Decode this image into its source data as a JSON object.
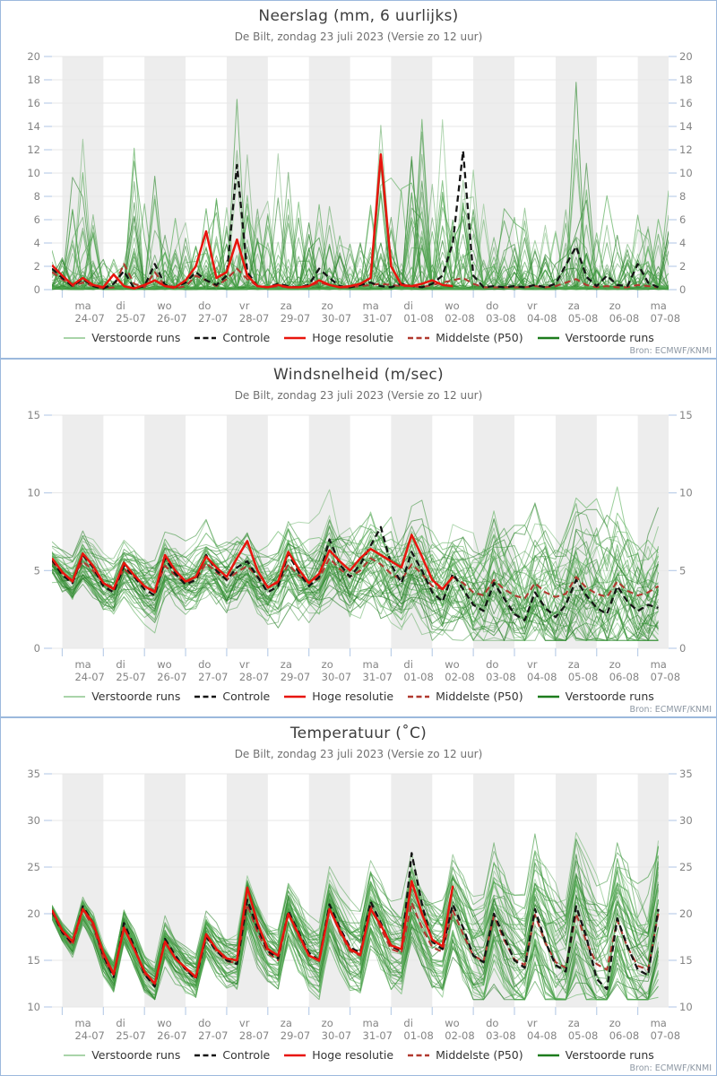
{
  "source_note": "Bron: ECMWF/KNMI",
  "legend": [
    {
      "label": "Verstoorde runs",
      "color": "#a9d4a9",
      "dash": false,
      "width": 2.0
    },
    {
      "label": "Controle",
      "color": "#141414",
      "dash": true,
      "width": 2.6
    },
    {
      "label": "Hoge resolutie",
      "color": "#e8150d",
      "dash": false,
      "width": 2.6
    },
    {
      "label": "Middelste (P50)",
      "color": "#b1392f",
      "dash": true,
      "width": 2.6
    },
    {
      "label": "Verstoorde runs",
      "color": "#1d7c1d",
      "dash": false,
      "width": 2.6
    }
  ],
  "days": [
    {
      "wd": "ma",
      "date": "24-07"
    },
    {
      "wd": "di",
      "date": "25-07"
    },
    {
      "wd": "wo",
      "date": "26-07"
    },
    {
      "wd": "do",
      "date": "27-07"
    },
    {
      "wd": "vr",
      "date": "28-07"
    },
    {
      "wd": "za",
      "date": "29-07"
    },
    {
      "wd": "zo",
      "date": "30-07"
    },
    {
      "wd": "ma",
      "date": "31-07"
    },
    {
      "wd": "di",
      "date": "01-08"
    },
    {
      "wd": "wo",
      "date": "02-08"
    },
    {
      "wd": "do",
      "date": "03-08"
    },
    {
      "wd": "vr",
      "date": "04-08"
    },
    {
      "wd": "za",
      "date": "05-08"
    },
    {
      "wd": "zo",
      "date": "06-08"
    },
    {
      "wd": "ma",
      "date": "07-08"
    }
  ],
  "chart_data": [
    {
      "type": "line",
      "title": "Neerslag (mm, 6 uurlijks)",
      "subtitle": "De Bilt, zondag 23 juli 2023 (Versie zo 12 uur)",
      "ylim": [
        0,
        20
      ],
      "yticks": [
        0,
        2,
        4,
        6,
        8,
        10,
        12,
        14,
        16,
        18,
        20
      ],
      "x_axis": {
        "start": "zo 23-07 18:00",
        "hours_total": 360,
        "day_tick_hours": 24,
        "grid": "day-bands"
      },
      "legend_position": "bottom",
      "series": [
        {
          "name": "p50",
          "legend_label": "Middelste (P50)",
          "color": "#b1392f",
          "dash": true,
          "width": 2.1,
          "t0": 0,
          "dt": 6,
          "v": [
            1.5,
            0.9,
            0.3,
            0.6,
            0.3,
            0.1,
            0.2,
            2.2,
            0.5,
            0.2,
            1.5,
            0.3,
            0.1,
            0.3,
            1.2,
            0.8,
            0.3,
            0.9,
            1.8,
            0.9,
            0.3,
            0.2,
            0.3,
            0.2,
            0.2,
            0.3,
            0.6,
            0.4,
            0.2,
            0.2,
            0.3,
            0.4,
            0.5,
            0.4,
            0.3,
            0.3,
            0.2,
            0.4,
            0.6,
            0.8,
            1.0,
            0.5,
            0.2,
            0.2,
            0.2,
            0.2,
            0.2,
            0.3,
            0.2,
            0.3,
            0.6,
            0.9,
            0.4,
            0.2,
            0.3,
            0.2,
            0.2,
            0.4,
            0.3,
            0.2
          ]
        },
        {
          "name": "controle",
          "legend_label": "Controle",
          "color": "#141414",
          "dash": true,
          "width": 2.3,
          "t0": 0,
          "dt": 6,
          "v": [
            1.8,
            1.0,
            0.3,
            0.9,
            0.3,
            0.1,
            0.5,
            1.6,
            0.1,
            0.3,
            2.2,
            0.4,
            0.2,
            0.6,
            1.5,
            0.8,
            0.4,
            1.2,
            10.7,
            1.5,
            0.3,
            0.2,
            0.5,
            0.3,
            0.2,
            0.4,
            1.8,
            1.0,
            0.3,
            0.2,
            0.4,
            0.6,
            0.3,
            0.2,
            0.5,
            0.3,
            0.2,
            0.5,
            1.2,
            4.0,
            11.9,
            1.2,
            0.2,
            0.3,
            0.2,
            0.3,
            0.2,
            0.4,
            0.2,
            0.5,
            2.1,
            3.7,
            1.1,
            0.3,
            1.2,
            0.4,
            0.3,
            2.2,
            0.6,
            0.2
          ]
        },
        {
          "name": "hires",
          "legend_label": "Hoge resolutie",
          "color": "#e8150d",
          "dash": false,
          "width": 2.5,
          "t0": 0,
          "dt": 6,
          "v": [
            2.1,
            1.2,
            0.4,
            1.0,
            0.4,
            0.2,
            1.3,
            0.3,
            0.1,
            0.4,
            0.8,
            0.3,
            0.2,
            0.8,
            2.0,
            5.0,
            1.0,
            1.5,
            4.3,
            1.2,
            0.3,
            0.2,
            0.4,
            0.2,
            0.2,
            0.3,
            0.8,
            0.4,
            0.2,
            0.3,
            0.5,
            1.0,
            11.6,
            2.0,
            0.4,
            0.3,
            0.5,
            0.8,
            0.4,
            0.3
          ]
        }
      ],
      "ensemble": {
        "kind": "spikes",
        "count": 50,
        "seed": 101,
        "dt": 6,
        "spike_prob": 0.3,
        "clamp_max": 19.6,
        "envelope": {
          "t0": 0,
          "dt": 6,
          "v": [
            3,
            4,
            8,
            12,
            9,
            3,
            2.5,
            3,
            11.5,
            9,
            8,
            6,
            6,
            7,
            8,
            8,
            7,
            9,
            13,
            10,
            8,
            9,
            12,
            10,
            13.5,
            9,
            9,
            7,
            6,
            7,
            9,
            11,
            13,
            10,
            12,
            14,
            19,
            12,
            11,
            10,
            12,
            9,
            7,
            6,
            6,
            7,
            8,
            7,
            6,
            8,
            9,
            17,
            9,
            6,
            7,
            6,
            5,
            6,
            5,
            7,
            9
          ]
        }
      }
    },
    {
      "type": "line",
      "title": "Windsnelheid (m/sec)",
      "subtitle": "De Bilt, zondag 23 juli 2023 (Versie zo 12 uur)",
      "ylim": [
        0,
        15
      ],
      "yticks": [
        0,
        5,
        10,
        15
      ],
      "x_axis": {
        "start": "zo 23-07 18:00",
        "hours_total": 360,
        "day_tick_hours": 24,
        "grid": "day-bands"
      },
      "legend_position": "bottom",
      "series": [
        {
          "name": "p50",
          "legend_label": "Middelste (P50)",
          "color": "#b1392f",
          "dash": true,
          "width": 2.1,
          "t0": 0,
          "dt": 6,
          "v": [
            5.6,
            4.8,
            4.4,
            5.6,
            5.0,
            4.2,
            3.9,
            5.1,
            4.6,
            4.0,
            3.7,
            5.3,
            4.7,
            4.2,
            4.4,
            5.5,
            4.9,
            4.4,
            4.9,
            5.3,
            4.6,
            4.0,
            4.2,
            5.4,
            4.7,
            4.2,
            4.5,
            5.8,
            5.1,
            4.6,
            5.0,
            5.8,
            5.4,
            4.8,
            4.4,
            5.4,
            4.8,
            4.0,
            3.8,
            4.6,
            4.2,
            3.6,
            3.4,
            4.4,
            3.8,
            3.4,
            3.2,
            4.2,
            3.6,
            3.3,
            3.5,
            4.6,
            3.9,
            3.5,
            3.3,
            4.3,
            3.7,
            3.4,
            3.6,
            4.0
          ]
        },
        {
          "name": "controle",
          "legend_label": "Controle",
          "color": "#141414",
          "dash": true,
          "width": 2.3,
          "t0": 0,
          "dt": 6,
          "v": [
            5.7,
            4.7,
            4.2,
            6.0,
            5.2,
            4.0,
            3.6,
            5.3,
            4.6,
            3.8,
            3.4,
            5.8,
            4.8,
            4.1,
            4.4,
            6.0,
            5.0,
            4.4,
            5.2,
            5.6,
            4.6,
            3.6,
            4.0,
            6.1,
            4.9,
            4.0,
            4.6,
            7.0,
            5.4,
            4.6,
            5.4,
            6.6,
            7.8,
            5.4,
            4.2,
            6.2,
            5.0,
            3.6,
            3.0,
            4.8,
            3.8,
            2.8,
            2.4,
            4.2,
            3.2,
            2.2,
            1.8,
            3.6,
            2.6,
            2.0,
            2.8,
            4.4,
            3.4,
            2.6,
            2.2,
            4.0,
            3.0,
            2.4,
            2.8,
            2.6
          ]
        },
        {
          "name": "hires",
          "legend_label": "Hoge resolutie",
          "color": "#e8150d",
          "dash": false,
          "width": 2.5,
          "t0": 0,
          "dt": 6,
          "v": [
            5.8,
            4.9,
            4.3,
            6.1,
            5.3,
            4.2,
            3.8,
            5.5,
            4.7,
            4.0,
            3.6,
            6.0,
            5.0,
            4.3,
            4.6,
            5.9,
            5.2,
            4.6,
            5.8,
            6.9,
            5.0,
            3.9,
            4.3,
            6.2,
            5.1,
            4.2,
            4.8,
            6.3,
            5.6,
            5.0,
            5.8,
            6.4,
            6.0,
            5.6,
            5.2,
            7.3,
            5.9,
            4.4,
            3.8,
            4.6
          ]
        }
      ],
      "ensemble": {
        "kind": "band",
        "count": 50,
        "seed": 202,
        "bias": 1.1,
        "noise": 1.6,
        "clamp_min": 0.5,
        "spread": {
          "t": [
            0,
            24,
            48,
            96,
            144,
            192,
            240,
            288,
            324,
            360
          ],
          "v": [
            0.8,
            1.0,
            1.1,
            1.2,
            1.6,
            1.9,
            2.3,
            2.7,
            3.0,
            2.9
          ]
        }
      }
    },
    {
      "type": "line",
      "title": "Temperatuur (˚C)",
      "subtitle": "De Bilt, zondag 23 juli 2023 (Versie zo 12 uur)",
      "ylim": [
        10,
        35
      ],
      "yticks": [
        10,
        15,
        20,
        25,
        30,
        35
      ],
      "x_axis": {
        "start": "zo 23-07 18:00",
        "hours_total": 360,
        "day_tick_hours": 24,
        "grid": "day-bands"
      },
      "legend_position": "bottom",
      "series": [
        {
          "name": "p50",
          "legend_label": "Middelste (P50)",
          "color": "#b1392f",
          "dash": true,
          "width": 2.1,
          "t0": 0,
          "dt": 6,
          "v": [
            20.2,
            18.0,
            16.6,
            20.4,
            18.6,
            15.2,
            13.4,
            18.6,
            16.2,
            13.6,
            12.4,
            17.0,
            15.3,
            14.0,
            13.1,
            17.6,
            16.0,
            14.9,
            14.7,
            21.0,
            18.0,
            15.8,
            15.0,
            20.0,
            17.6,
            15.5,
            14.9,
            20.6,
            18.0,
            16.0,
            15.5,
            20.8,
            18.4,
            16.2,
            15.8,
            21.2,
            18.5,
            16.4,
            15.9,
            20.4,
            17.8,
            15.5,
            14.9,
            19.8,
            17.2,
            15.1,
            14.5,
            19.9,
            16.9,
            14.8,
            14.2,
            20.0,
            17.0,
            14.6,
            14.0,
            19.3,
            16.4,
            14.4,
            14.0,
            20.0
          ]
        },
        {
          "name": "controle",
          "legend_label": "Controle",
          "color": "#141414",
          "dash": true,
          "width": 2.3,
          "t0": 0,
          "dt": 6,
          "v": [
            20.3,
            18.0,
            16.8,
            20.8,
            19.0,
            15.5,
            13.2,
            19.0,
            16.5,
            13.5,
            12.2,
            17.3,
            15.5,
            14.0,
            13.0,
            17.5,
            16.0,
            15.0,
            14.6,
            21.5,
            18.5,
            16.0,
            15.2,
            20.3,
            18.0,
            15.8,
            15.0,
            21.0,
            18.5,
            16.4,
            15.8,
            21.3,
            19.0,
            16.5,
            16.0,
            26.5,
            21.0,
            17.0,
            16.2,
            21.0,
            18.5,
            15.5,
            14.8,
            20.0,
            17.5,
            15.0,
            14.2,
            20.5,
            17.0,
            14.5,
            13.8,
            20.8,
            17.5,
            13.0,
            11.9,
            19.5,
            16.5,
            14.0,
            13.4,
            20.5
          ]
        },
        {
          "name": "hires",
          "legend_label": "Hoge resolutie",
          "color": "#e8150d",
          "dash": false,
          "width": 2.5,
          "t0": 0,
          "dt": 6,
          "v": [
            20.4,
            18.2,
            17.0,
            20.5,
            19.0,
            15.8,
            13.5,
            18.5,
            16.2,
            13.8,
            12.5,
            17.0,
            15.2,
            14.2,
            13.2,
            17.8,
            16.2,
            15.2,
            15.0,
            22.8,
            19.0,
            16.2,
            15.5,
            20.0,
            17.8,
            15.5,
            15.0,
            20.5,
            18.2,
            16.2,
            15.6,
            20.5,
            18.8,
            16.6,
            16.2,
            23.5,
            20.0,
            17.2,
            16.5,
            23.0
          ]
        }
      ],
      "ensemble": {
        "kind": "band",
        "count": 50,
        "seed": 303,
        "bias": 1.5,
        "noise": 1.2,
        "clamp_min": 10.8,
        "spread": {
          "t": [
            0,
            24,
            48,
            96,
            144,
            192,
            240,
            288,
            360
          ],
          "v": [
            0.4,
            0.8,
            1.1,
            1.4,
            1.9,
            2.3,
            2.9,
            4.0,
            4.4
          ]
        }
      }
    }
  ]
}
